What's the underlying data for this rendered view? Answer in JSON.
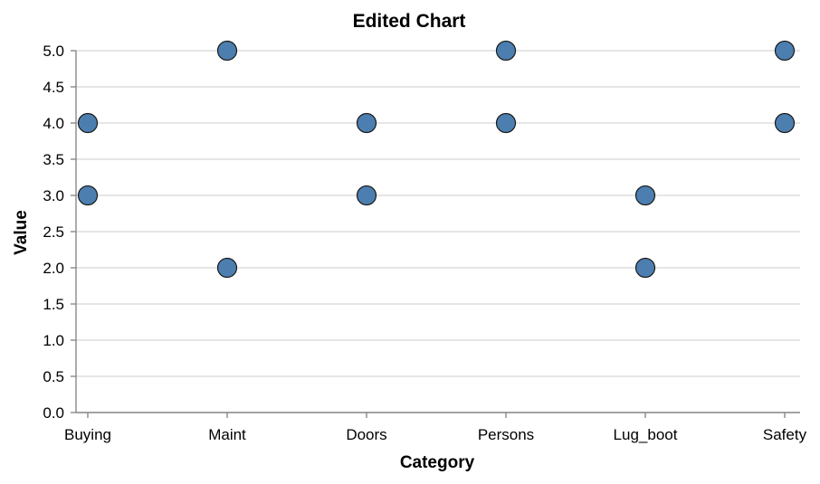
{
  "chart_data": {
    "type": "scatter",
    "title": "Edited Chart",
    "xlabel": "Category",
    "ylabel": "Value",
    "categories": [
      "Buying",
      "Maint",
      "Doors",
      "Persons",
      "Lug_boot",
      "Safety"
    ],
    "ylim": [
      0,
      5
    ],
    "yticks": [
      "0.0",
      "0.5",
      "1.0",
      "1.5",
      "2.0",
      "2.5",
      "3.0",
      "3.5",
      "4.0",
      "4.5",
      "5.0"
    ],
    "grid": true,
    "points": [
      {
        "x": "Buying",
        "y": 4
      },
      {
        "x": "Buying",
        "y": 3
      },
      {
        "x": "Maint",
        "y": 5
      },
      {
        "x": "Maint",
        "y": 2
      },
      {
        "x": "Doors",
        "y": 4
      },
      {
        "x": "Doors",
        "y": 3
      },
      {
        "x": "Persons",
        "y": 5
      },
      {
        "x": "Persons",
        "y": 4
      },
      {
        "x": "Lug_boot",
        "y": 3
      },
      {
        "x": "Lug_boot",
        "y": 2
      },
      {
        "x": "Safety",
        "y": 5
      },
      {
        "x": "Safety",
        "y": 4
      }
    ],
    "colors": {
      "point_fill": "#4c7fb0",
      "point_stroke": "#1a1a1a"
    }
  }
}
